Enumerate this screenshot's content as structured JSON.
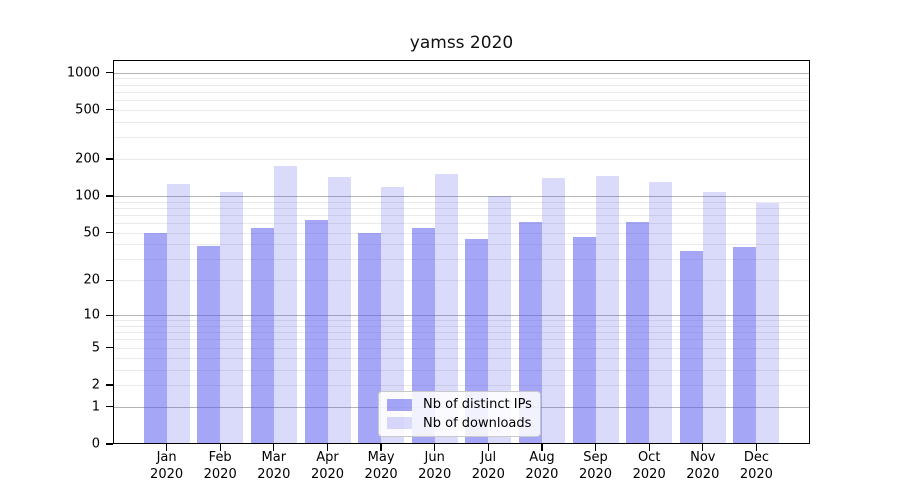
{
  "title": "yamss 2020",
  "chart_data": {
    "type": "bar",
    "title": "yamss 2020",
    "categories": [
      "Jan",
      "Feb",
      "Mar",
      "Apr",
      "May",
      "Jun",
      "Jul",
      "Aug",
      "Sep",
      "Oct",
      "Nov",
      "Dec"
    ],
    "year": "2020",
    "series": [
      {
        "name": "Nb of distinct IPs",
        "color_hex": "#a7a7f6",
        "color_rgba": "rgba(85,85,238,0.52)",
        "values": [
          50,
          39,
          55,
          63,
          50,
          55,
          44,
          61,
          46,
          61,
          35,
          38
        ]
      },
      {
        "name": "Nb of downloads",
        "color_hex": "#dadafb",
        "color_rgba": "rgba(85,85,238,0.22)",
        "values": [
          124,
          107,
          176,
          143,
          119,
          151,
          100,
          141,
          146,
          131,
          107,
          88
        ]
      }
    ],
    "y_ticks": [
      0,
      1,
      2,
      5,
      10,
      20,
      50,
      100,
      200,
      500,
      1000
    ],
    "y_scale": "log1p",
    "ylim": [
      0,
      1263
    ],
    "grid": true,
    "legend_position": "lower center",
    "colors": {
      "major_grid": "#b3b3b3",
      "minor_grid": "#eaeaea",
      "axis": "#000000",
      "text": "#000000",
      "background": "#ffffff"
    }
  }
}
